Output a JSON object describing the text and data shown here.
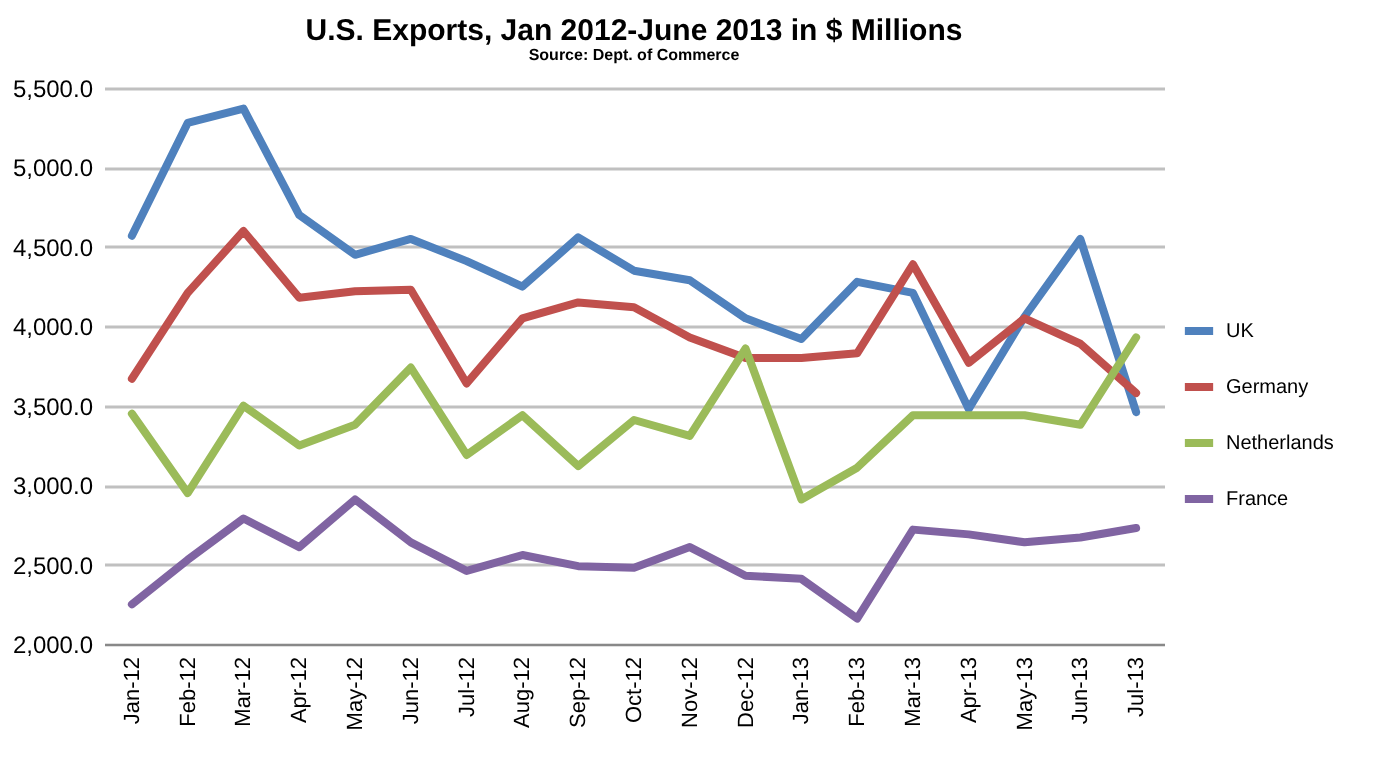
{
  "chart_data": {
    "type": "line",
    "title": "U.S. Exports, Jan 2012-June 2013 in $ Millions",
    "subtitle": "Source: Dept. of Commerce",
    "categories": [
      "Jan-12",
      "Feb-12",
      "Mar-12",
      "Apr-12",
      "May-12",
      "Jun-12",
      "Jul-12",
      "Aug-12",
      "Sep-12",
      "Oct-12",
      "Nov-12",
      "Dec-12",
      "Jan-13",
      "Feb-13",
      "Mar-13",
      "Apr-13",
      "May-13",
      "Jun-13",
      "Jul-13"
    ],
    "series": [
      {
        "name": "UK",
        "color": "#4f81bd",
        "values": [
          4570,
          5280,
          5370,
          4700,
          4450,
          4550,
          4410,
          4250,
          4560,
          4350,
          4290,
          4050,
          3920,
          4280,
          4210,
          3480,
          4060,
          4550,
          3460
        ]
      },
      {
        "name": "Germany",
        "color": "#c0504d",
        "values": [
          3670,
          4210,
          4600,
          4180,
          4220,
          4230,
          3640,
          4050,
          4150,
          4120,
          3930,
          3800,
          3800,
          3830,
          4390,
          3770,
          4050,
          3890,
          3580
        ]
      },
      {
        "name": "Netherlands",
        "color": "#9bbb59",
        "values": [
          3450,
          2950,
          3500,
          3250,
          3380,
          3740,
          3190,
          3440,
          3120,
          3410,
          3310,
          3860,
          2910,
          3110,
          3440,
          3440,
          3440,
          3380,
          3930
        ]
      },
      {
        "name": "France",
        "color": "#8064a2",
        "values": [
          2250,
          2530,
          2790,
          2610,
          2910,
          2640,
          2460,
          2560,
          2490,
          2480,
          2610,
          2430,
          2410,
          2160,
          2720,
          2690,
          2640,
          2670,
          2730
        ]
      }
    ],
    "ylim": [
      2000,
      5500
    ],
    "yticks": [
      {
        "value": 2000,
        "label": "2,000.0"
      },
      {
        "value": 2500,
        "label": "2,500.0"
      },
      {
        "value": 3000,
        "label": "3,000.0"
      },
      {
        "value": 3500,
        "label": "3,500.0"
      },
      {
        "value": 4000,
        "label": "4,000.0"
      },
      {
        "value": 4500,
        "label": "4,500.0"
      },
      {
        "value": 5000,
        "label": "5,000.0"
      },
      {
        "value": 5500,
        "label": "5,500.0"
      }
    ],
    "grid": "y",
    "legend": "right",
    "marker": "none",
    "line_style": "solid"
  }
}
